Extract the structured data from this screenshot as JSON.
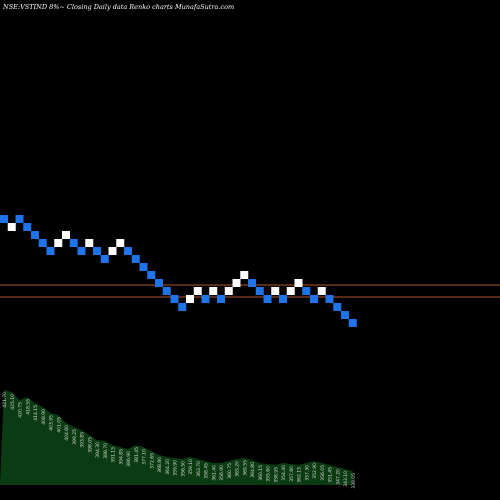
{
  "header": {
    "title": "NSE:VSTIND 8%~  Closing Daily data  Renko  charts MunafaSutra.com"
  },
  "chart_data": {
    "type": "renko",
    "title": "NSE:VSTIND 8%~  Closing Daily data  Renko  charts MunafaSutra.com",
    "colors": {
      "up": "#ffffff",
      "down": "#1e74e8",
      "line": "#b5552b",
      "volume": "#0b3b12",
      "label": "#dddddd"
    },
    "price_rows": [
      0,
      -1,
      0,
      -1,
      -2,
      -3,
      -4,
      -3,
      -2,
      -3,
      -4,
      -3,
      -4,
      -5,
      -4,
      -3,
      -4,
      -5,
      -6,
      -7,
      -8,
      -9,
      -10,
      -11,
      -10,
      -9,
      -10,
      -9,
      -10,
      -9,
      -8,
      -7,
      -8,
      -9,
      -10,
      -9,
      -10,
      -9,
      -8,
      -9,
      -10,
      -9,
      -10,
      -11,
      -12,
      -13
    ],
    "brick_colors": [
      "down",
      "up",
      "down",
      "down",
      "down",
      "down",
      "down",
      "up",
      "up",
      "down",
      "down",
      "up",
      "down",
      "down",
      "up",
      "up",
      "down",
      "down",
      "down",
      "down",
      "down",
      "down",
      "down",
      "down",
      "up",
      "up",
      "down",
      "up",
      "down",
      "up",
      "up",
      "up",
      "down",
      "down",
      "down",
      "up",
      "down",
      "up",
      "up",
      "down",
      "down",
      "up",
      "down",
      "down",
      "down",
      "down"
    ],
    "support_rows": [
      -8.25,
      -9.75
    ],
    "volume_heights": [
      95,
      93,
      85,
      88,
      82,
      78,
      72,
      70,
      62,
      58,
      55,
      50,
      45,
      44,
      40,
      38,
      36,
      40,
      38,
      34,
      30,
      28,
      27,
      26,
      28,
      26,
      24,
      22,
      22,
      24,
      26,
      27,
      25,
      22,
      21,
      20,
      22,
      21,
      20,
      22,
      24,
      22,
      20,
      18,
      16,
      14
    ],
    "labels": [
      "421.70",
      "425.10",
      "420.75",
      "418.55",
      "414.15",
      "408.90",
      "403.95",
      "401.05",
      "404.60",
      "399.25",
      "393.85",
      "398.05",
      "394.30",
      "388.70",
      "391.15",
      "394.85",
      "386.90",
      "381.45",
      "377.10",
      "372.65",
      "368.80",
      "364.20",
      "359.90",
      "356.50",
      "359.10",
      "363.70",
      "358.45",
      "361.40",
      "356.90",
      "360.75",
      "365.20",
      "369.55",
      "364.80",
      "360.15",
      "355.60",
      "358.95",
      "354.40",
      "357.80",
      "362.15",
      "357.30",
      "352.90",
      "356.05",
      "351.45",
      "347.20",
      "343.10",
      "339.05"
    ]
  }
}
